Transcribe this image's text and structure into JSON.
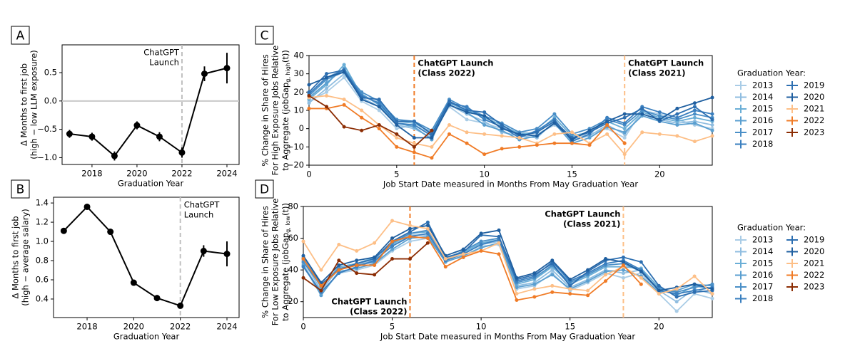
{
  "chart_data": [
    {
      "type": "line",
      "panel": "A",
      "x_label": "Graduation Year",
      "y_label": [
        "Δ Months to first job",
        "(high − low LLM exposure)"
      ],
      "x": [
        2017,
        2018,
        2019,
        2020,
        2021,
        2022,
        2023,
        2024
      ],
      "values": [
        -0.58,
        -0.63,
        -0.97,
        -0.43,
        -0.63,
        -0.91,
        0.48,
        0.58
      ],
      "errors": [
        0.07,
        0.07,
        0.08,
        0.07,
        0.08,
        0.09,
        0.13,
        0.27
      ],
      "color": "#000000",
      "reference_line": 0,
      "xlim": [
        2016.67,
        2024.54
      ],
      "ylim": [
        -1.12,
        0.99
      ],
      "xticks": [
        2018,
        2020,
        2022,
        2024
      ],
      "yticks": [
        {
          "value": -1.0,
          "label": "−1.0"
        },
        {
          "value": -0.5,
          "label": "−0.5"
        },
        {
          "value": 0.0,
          "label": "0.0"
        },
        {
          "value": 0.5,
          "label": "0.5"
        }
      ],
      "annotations": [
        {
          "x": 2022,
          "text": [
            "ChatGPT",
            "Launch"
          ],
          "color": "#999999"
        }
      ]
    },
    {
      "type": "line",
      "panel": "B",
      "x_label": "Graduation Year",
      "y_label": [
        "Δ Months to first job",
        "(high − average salary)"
      ],
      "x": [
        2017,
        2018,
        2019,
        2020,
        2021,
        2022,
        2023,
        2024
      ],
      "values": [
        1.11,
        1.36,
        1.1,
        0.57,
        0.41,
        0.33,
        0.9,
        0.87
      ],
      "errors": [
        0.02,
        0.02,
        0.02,
        0.02,
        0.02,
        0.03,
        0.06,
        0.13
      ],
      "color": "#000000",
      "xlim": [
        2016.56,
        2024.52
      ],
      "ylim": [
        0.207,
        1.46
      ],
      "xticks": [
        2018,
        2020,
        2022,
        2024
      ],
      "yticks": [
        0.4,
        0.6,
        0.8,
        {
          "value": 1.0,
          "label": "1.0"
        },
        1.2,
        1.4
      ],
      "annotations": [
        {
          "x": 2022,
          "text": [
            "ChatGPT",
            "Launch"
          ],
          "color": "#999999"
        }
      ]
    },
    {
      "type": "line",
      "panel": "C",
      "x_label": "Job Start Date measured in Months From May Graduation Year",
      "y_label": [
        "% Change in Share of Hires",
        "For High Exposure Jobs Relative",
        {
          "text": "to Aggregate (jobGap",
          "sub": "g, high",
          "end": "(t))"
        }
      ],
      "legend_title": "Graduation Year:",
      "x": [
        0,
        1,
        2,
        3,
        4,
        5,
        6,
        7,
        8,
        9,
        10,
        11,
        12,
        13,
        14,
        15,
        16,
        17,
        18,
        19,
        20,
        21,
        22,
        23
      ],
      "series": [
        {
          "name": "2013",
          "color": "#a9cce6",
          "values": [
            15,
            20,
            28,
            15,
            10,
            0,
            2,
            -3,
            12,
            5,
            3,
            0,
            -2,
            -3,
            2,
            -5,
            -3,
            0,
            -5,
            10,
            8,
            5,
            2,
            0
          ]
        },
        {
          "name": "2014",
          "color": "#8fbde0",
          "values": [
            14,
            22,
            30,
            17,
            12,
            2,
            0,
            -5,
            13,
            8,
            4,
            -2,
            -4,
            -5,
            4,
            -6,
            -4,
            2,
            -3,
            8,
            5,
            3,
            4,
            2
          ]
        },
        {
          "name": "2015",
          "color": "#6aaed6",
          "values": [
            16,
            24,
            35,
            18,
            14,
            4,
            3,
            -2,
            14,
            10,
            6,
            2,
            -3,
            -2,
            6,
            -4,
            -2,
            4,
            0,
            9,
            6,
            4,
            6,
            4
          ]
        },
        {
          "name": "2016",
          "color": "#5a9fd0",
          "values": [
            17,
            25,
            33,
            19,
            13,
            3,
            1,
            -6,
            15,
            9,
            2,
            -1,
            -6,
            -4,
            3,
            -8,
            -5,
            1,
            -2,
            7,
            4,
            2,
            3,
            -1
          ]
        },
        {
          "name": "2017",
          "color": "#4a8fc7",
          "values": [
            18,
            27,
            31,
            20,
            15,
            5,
            4,
            -1,
            16,
            11,
            7,
            3,
            -2,
            0,
            8,
            -3,
            0,
            5,
            2,
            10,
            7,
            5,
            8,
            6
          ]
        },
        {
          "name": "2018",
          "color": "#3a7fbf",
          "values": [
            19,
            28,
            32,
            18,
            14,
            3,
            2,
            -4,
            14,
            12,
            5,
            1,
            -5,
            -1,
            5,
            -7,
            -3,
            6,
            3,
            12,
            9,
            6,
            10,
            8
          ]
        },
        {
          "name": "2019",
          "color": "#2d6fb1",
          "values": [
            20,
            30,
            32,
            17,
            16,
            4,
            4,
            -3,
            15,
            10,
            9,
            2,
            -4,
            -2,
            4,
            -5,
            -2,
            3,
            6,
            11,
            4,
            8,
            12,
            5
          ]
        },
        {
          "name": "2020",
          "color": "#1f5fa0",
          "values": [
            24,
            28,
            31,
            16,
            12,
            2,
            -5,
            -5,
            13,
            9,
            7,
            0,
            -3,
            -4,
            3,
            -6,
            -1,
            4,
            8,
            8,
            5,
            11,
            14,
            17
          ]
        },
        {
          "name": "2021",
          "color": "#fdbf87",
          "values": [
            17,
            18,
            16,
            10,
            2,
            -5,
            -8,
            -10,
            2,
            -2,
            -3,
            -4,
            -5,
            -8,
            -3,
            -2,
            -8,
            -3,
            -14,
            -2,
            -3,
            -4,
            -7,
            -4
          ]
        },
        {
          "name": "2022",
          "color": "#f07b26",
          "values": [
            11,
            11,
            13,
            6,
            0,
            -10,
            -13,
            -16,
            -3,
            -8,
            -14,
            -11,
            -10,
            -9,
            -8,
            -8,
            -9,
            2,
            -8,
            null,
            null,
            null,
            null,
            null
          ]
        },
        {
          "name": "2023",
          "color": "#8c2d04",
          "values": [
            18,
            12,
            1,
            -1,
            2,
            -3,
            -10,
            -1,
            null,
            null,
            null,
            null,
            null,
            null,
            null,
            null,
            null,
            null,
            null,
            null,
            null,
            null,
            null,
            null
          ]
        }
      ],
      "xlim": [
        0,
        23
      ],
      "ylim": [
        -20,
        40
      ],
      "xticks": [
        0,
        5,
        10,
        15,
        20
      ],
      "yticks": [
        {
          "value": -20,
          "label": "−20"
        },
        {
          "value": -10,
          "label": "−10"
        },
        0,
        10,
        20,
        30,
        40
      ],
      "annotations": [
        {
          "x": 6,
          "text": [
            "ChatGPT Launch",
            "(Class 2022)"
          ],
          "color": "#f07b26"
        },
        {
          "x": 18,
          "text": [
            "ChatGPT Launch",
            "(Class 2021)"
          ],
          "color": "#fdbf87"
        }
      ]
    },
    {
      "type": "line",
      "panel": "D",
      "x_label": "Job Start Date measured in Months From May Graduation Year",
      "y_label": [
        "% Change in Share of Hires",
        "For Low Exposure Jobs Relative",
        {
          "text": "to Aggregate (jobGap",
          "sub": "g, low",
          "end": "(t))"
        }
      ],
      "legend_title": "Graduation Year:",
      "x": [
        0,
        1,
        2,
        3,
        4,
        5,
        6,
        7,
        8,
        9,
        10,
        11,
        12,
        13,
        14,
        15,
        16,
        17,
        18,
        19,
        20,
        21,
        22,
        23
      ],
      "series": [
        {
          "name": "2013",
          "color": "#a9cce6",
          "values": [
            44,
            25,
            38,
            40,
            43,
            52,
            58,
            60,
            46,
            48,
            55,
            56,
            28,
            30,
            38,
            27,
            32,
            38,
            35,
            38,
            25,
            14,
            25,
            22
          ]
        },
        {
          "name": "2014",
          "color": "#8fbde0",
          "values": [
            46,
            27,
            41,
            43,
            46,
            55,
            62,
            62,
            47,
            50,
            56,
            58,
            30,
            32,
            40,
            29,
            34,
            40,
            38,
            40,
            27,
            20,
            28,
            25
          ]
        },
        {
          "name": "2015",
          "color": "#6aaed6",
          "values": [
            48,
            29,
            42,
            44,
            48,
            56,
            63,
            64,
            48,
            51,
            57,
            59,
            31,
            34,
            42,
            31,
            36,
            42,
            42,
            41,
            29,
            24,
            30,
            28
          ]
        },
        {
          "name": "2016",
          "color": "#5a9fd0",
          "values": [
            43,
            24,
            39,
            41,
            44,
            53,
            60,
            61,
            45,
            49,
            54,
            57,
            29,
            31,
            37,
            28,
            33,
            39,
            40,
            36,
            26,
            27,
            31,
            30
          ]
        },
        {
          "name": "2017",
          "color": "#4a8fc7",
          "values": [
            45,
            30,
            41,
            43,
            45,
            57,
            63,
            65,
            47,
            52,
            58,
            60,
            32,
            35,
            43,
            32,
            37,
            43,
            44,
            39,
            28,
            26,
            29,
            31
          ]
        },
        {
          "name": "2018",
          "color": "#3a7fbf",
          "values": [
            42,
            26,
            38,
            42,
            46,
            55,
            61,
            63,
            46,
            50,
            56,
            59,
            33,
            36,
            45,
            33,
            38,
            44,
            46,
            40,
            27,
            25,
            27,
            29
          ]
        },
        {
          "name": "2019",
          "color": "#2d6fb1",
          "values": [
            47,
            31,
            40,
            44,
            47,
            58,
            64,
            70,
            48,
            51,
            62,
            61,
            34,
            37,
            44,
            30,
            39,
            46,
            48,
            45,
            30,
            23,
            26,
            27
          ]
        },
        {
          "name": "2020",
          "color": "#1f5fa0",
          "values": [
            49,
            32,
            43,
            46,
            48,
            60,
            66,
            68,
            49,
            53,
            63,
            65,
            35,
            38,
            46,
            34,
            40,
            47,
            45,
            39,
            27,
            29,
            31,
            28
          ]
        },
        {
          "name": "2021",
          "color": "#fdbf87",
          "values": [
            58,
            40,
            56,
            52,
            57,
            71,
            68,
            66,
            47,
            50,
            52,
            57,
            25,
            28,
            30,
            28,
            27,
            37,
            42,
            35,
            25,
            28,
            36,
            25
          ]
        },
        {
          "name": "2022",
          "color": "#f07b26",
          "values": [
            47,
            30,
            40,
            43,
            43,
            58,
            61,
            60,
            42,
            48,
            52,
            50,
            21,
            23,
            26,
            25,
            24,
            33,
            43,
            31,
            null,
            null,
            null,
            null
          ]
        },
        {
          "name": "2023",
          "color": "#8c2d04",
          "values": [
            35,
            27,
            46,
            38,
            37,
            47,
            47,
            57,
            null,
            null,
            null,
            null,
            null,
            null,
            null,
            null,
            null,
            null,
            null,
            null,
            null,
            null,
            null,
            null
          ]
        }
      ],
      "xlim": [
        0,
        23
      ],
      "ylim": [
        10,
        80
      ],
      "xticks": [
        0,
        5,
        10,
        15,
        20
      ],
      "yticks": [
        20,
        40,
        60,
        80
      ],
      "annotations": [
        {
          "x": 6,
          "text": [
            "ChatGPT Launch",
            "(Class 2022)"
          ],
          "color": "#f07b26"
        },
        {
          "x": 18,
          "text": [
            "ChatGPT Launch",
            "(Class 2021)"
          ],
          "color": "#fdbf87"
        }
      ]
    }
  ]
}
